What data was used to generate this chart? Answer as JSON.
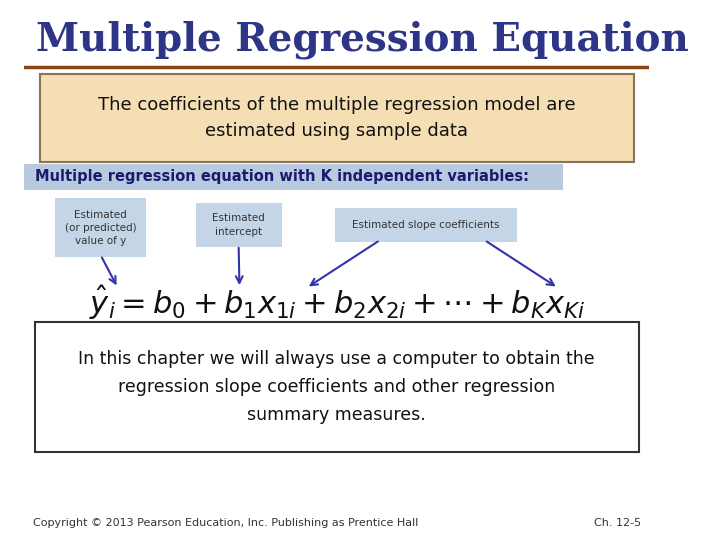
{
  "title": "Multiple Regression Equation",
  "title_color": "#2E3587",
  "title_fontsize": 28,
  "bg_color": "#FFFFFF",
  "tan_box_text": "The coefficients of the multiple regression model are\nestimated using sample data",
  "tan_box_color": "#F5DEB3",
  "tan_box_border": "#8B7355",
  "blue_bar_text": "Multiple regression equation with K independent variables:",
  "blue_bar_color": "#B8C9E0",
  "blue_bar_text_color": "#1A1A6E",
  "label1_text": "Estimated\n(or predicted)\nvalue of y",
  "label2_text": "Estimated\nintercept",
  "label3_text": "Estimated slope coefficients",
  "label_box_color": "#C5D5E8",
  "label_text_color": "#333333",
  "arrow_color": "#3333AA",
  "bottom_box_text": "In this chapter we will always use a computer to obtain the\nregression slope coefficients and other regression\nsummary measures.",
  "bottom_box_border": "#333333",
  "footer_left": "Copyright © 2013 Pearson Education, Inc. Publishing as Prentice Hall",
  "footer_right": "Ch. 12-5",
  "footer_color": "#333333",
  "footer_fontsize": 8,
  "equation": "$\\hat{y}_i = b_0 + b_1 x_{1i} + b_2 x_{2i} + \\cdots + b_K x_{Ki}$",
  "equation_fontsize": 22
}
